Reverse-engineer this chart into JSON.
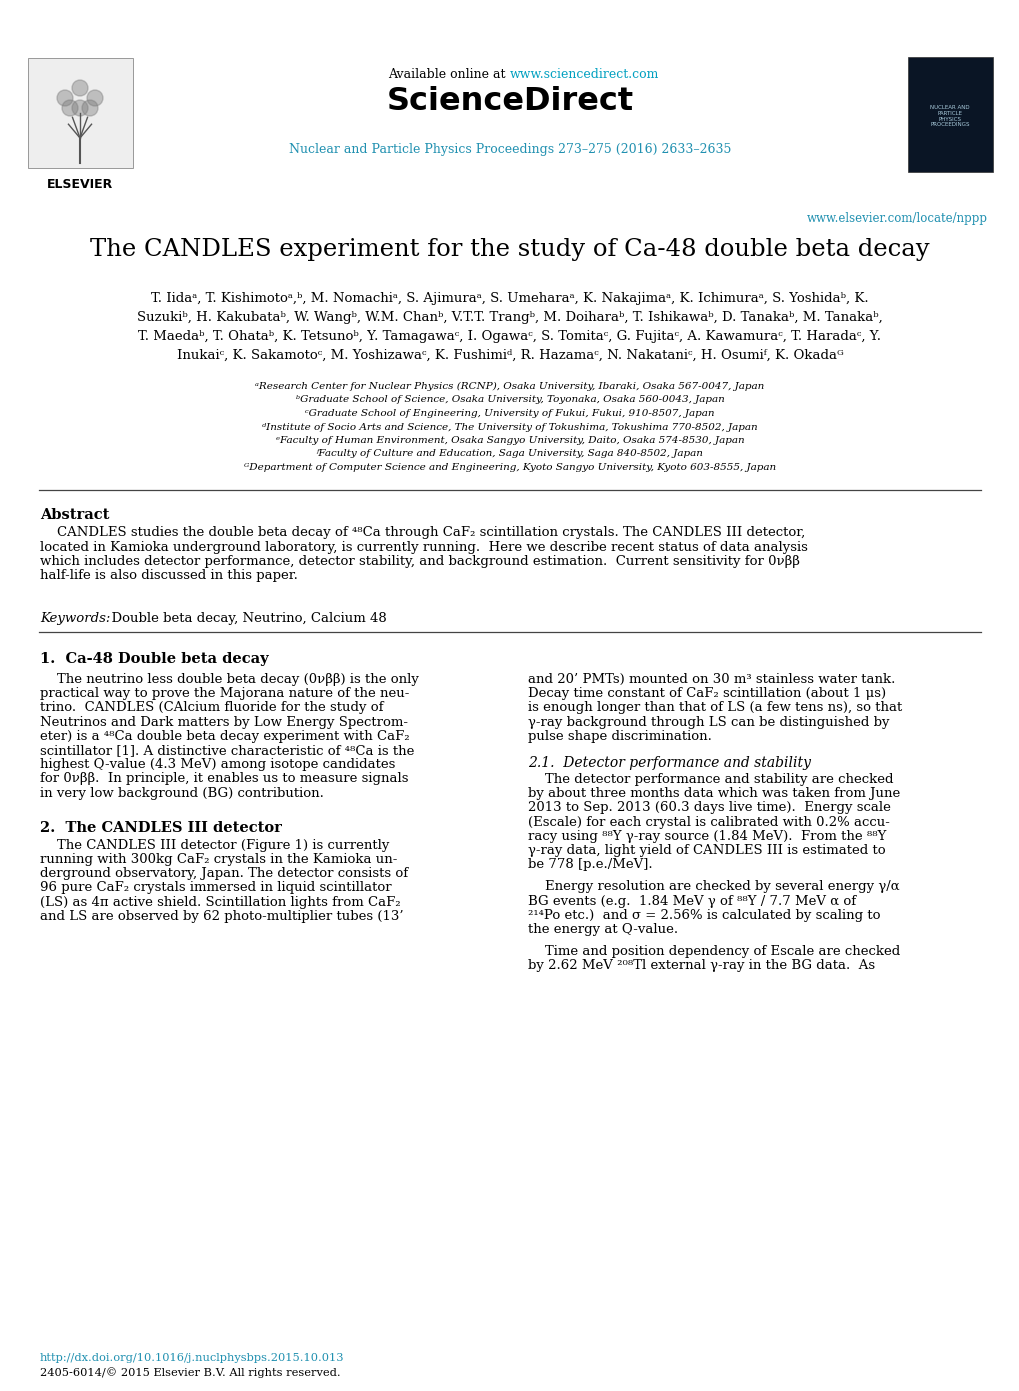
{
  "title": "The CANDLES experiment for the study of Ca-48 double beta decay",
  "available_online_prefix": "Available online at ",
  "sciencedirect_url": "www.sciencedirect.com",
  "journal_line": "Nuclear and Particle Physics Proceedings 273–275 (2016) 2633–2635",
  "elsevier_url": "www.elsevier.com/locate/nppp",
  "authors_line1": "T. Iidaᵃ, T. Kishimotoᵃ,ᵇ, M. Nomachiᵃ, S. Ajimuraᵃ, S. Umeharaᵃ, K. Nakajimaᵃ, K. Ichimuraᵃ, S. Yoshidaᵇ, K.",
  "authors_line2": "Suzukiᵇ, H. Kakubataᵇ, W. Wangᵇ, W.M. Chanᵇ, V.T.T. Trangᵇ, M. Doiharaᵇ, T. Ishikawaᵇ, D. Tanakaᵇ, M. Tanakaᵇ,",
  "authors_line3": "T. Maedaᵇ, T. Ohataᵇ, K. Tetsunoᵇ, Y. Tamagawaᶜ, I. Ogawaᶜ, S. Tomitaᶜ, G. Fujitaᶜ, A. Kawamuraᶜ, T. Haradaᶜ, Y.",
  "authors_line4": "Inukaiᶜ, K. Sakamotoᶜ, M. Yoshizawaᶜ, K. Fushimiᵈ, R. Hazamaᶜ, N. Nakataniᶜ, H. Osumiᶠ, K. Okadaᴳ",
  "affil_a": "ᵃResearch Center for Nuclear Physics (RCNP), Osaka University, Ibaraki, Osaka 567-0047, Japan",
  "affil_b": "ᵇGraduate School of Science, Osaka University, Toyonaka, Osaka 560-0043, Japan",
  "affil_c": "ᶜGraduate School of Engineering, University of Fukui, Fukui, 910-8507, Japan",
  "affil_d": "ᵈInstitute of Socio Arts and Science, The University of Tokushima, Tokushima 770-8502, Japan",
  "affil_e": "ᵉFaculty of Human Environment, Osaka Sangyo University, Daito, Osaka 574-8530, Japan",
  "affil_f": "ᶠFaculty of Culture and Education, Saga University, Saga 840-8502, Japan",
  "affil_g": "ᴳDepartment of Computer Science and Engineering, Kyoto Sangyo University, Kyoto 603-8555, Japan",
  "abstract_title": "Abstract",
  "abstract_line1": "    CANDLES studies the double beta decay of ⁴⁸Ca through CaF₂ scintillation crystals. The CANDLES III detector,",
  "abstract_line2": "located in Kamioka underground laboratory, is currently running.  Here we describe recent status of data analysis",
  "abstract_line3": "which includes detector performance, detector stability, and background estimation.  Current sensitivity for 0νββ",
  "abstract_line4": "half-life is also discussed in this paper.",
  "keywords_label": "Keywords:",
  "keywords_text": "  Double beta decay, Neutrino, Calcium 48",
  "section1_title": "1.  Ca-48 Double beta decay",
  "s1_l1": "    The neutrino less double beta decay (0νββ) is the only",
  "s1_l2": "practical way to prove the Majorana nature of the neu-",
  "s1_l3": "trino.  CANDLES (CAlcium fluoride for the study of",
  "s1_l4": "Neutrinos and Dark matters by Low Energy Spectrom-",
  "s1_l5": "eter) is a ⁴⁸Ca double beta decay experiment with CaF₂",
  "s1_l6": "scintillator [1]. A distinctive characteristic of ⁴⁸Ca is the",
  "s1_l7": "highest Q-value (4.3 MeV) among isotope candidates",
  "s1_l8": "for 0νββ.  In principle, it enables us to measure signals",
  "s1_l9": "in very low background (BG) contribution.",
  "s1r_l1": "and 20’ PMTs) mounted on 30 m³ stainless water tank.",
  "s1r_l2": "Decay time constant of CaF₂ scintillation (about 1 μs)",
  "s1r_l3": "is enough longer than that of LS (a few tens ns), so that",
  "s1r_l4": "γ-ray background through LS can be distinguished by",
  "s1r_l5": "pulse shape discrimination.",
  "section2_title": "2.  The CANDLES III detector",
  "s2_l1": "    The CANDLES III detector (Figure 1) is currently",
  "s2_l2": "running with 300kg CaF₂ crystals in the Kamioka un-",
  "s2_l3": "derground observatory, Japan. The detector consists of",
  "s2_l4": "96 pure CaF₂ crystals immersed in liquid scintillator",
  "s2_l5": "(LS) as 4π active shield. Scintillation lights from CaF₂",
  "s2_l6": "and LS are observed by 62 photo-multiplier tubes (13’",
  "section21_title": "2.1.  Detector performance and stability",
  "s21_l1": "    The detector performance and stability are checked",
  "s21_l2": "by about three months data which was taken from June",
  "s21_l3": "2013 to Sep. 2013 (60.3 days live time).  Energy scale",
  "s21_l4": "(Escale) for each crystal is calibrated with 0.2% accu-",
  "s21_l5": "racy using ⁸⁸Y γ-ray source (1.84 MeV).  From the ⁸⁸Y",
  "s21_l6": "γ-ray data, light yield of CANDLES III is estimated to",
  "s21_l7": "be 778 [p.e./MeV].",
  "s21b_l1": "    Energy resolution are checked by several energy γ/α",
  "s21b_l2": "BG events (e.g.  1.84 MeV γ of ⁸⁸Y / 7.7 MeV α of",
  "s21b_l3": "²¹⁴Po etc.)  and σ = 2.56% is calculated by scaling to",
  "s21b_l4": "the energy at Q-value.",
  "s21c_l1": "    Time and position dependency of Escale are checked",
  "s21c_l2": "by 2.62 MeV ²⁰⁸Tl external γ-ray in the BG data.  As",
  "doi_text": "http://dx.doi.org/10.1016/j.nuclphysbps.2015.10.013",
  "copyright_text": "2405-6014/© 2015 Elsevier B.V. All rights reserved.",
  "bg_color": "#ffffff",
  "text_color": "#000000",
  "link_color": "#00a0c0",
  "journal_link_color": "#2090b0"
}
